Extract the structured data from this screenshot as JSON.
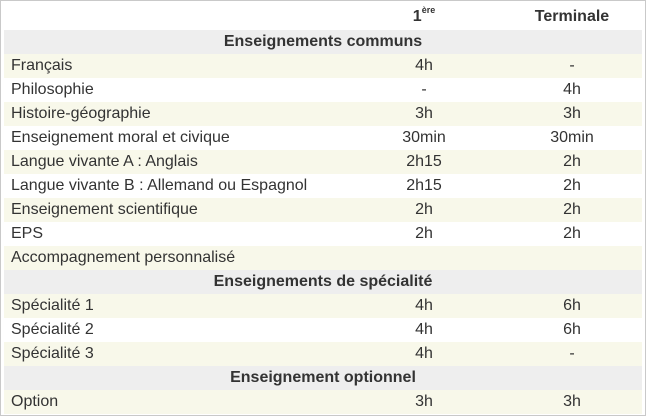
{
  "header": {
    "col1": "",
    "col2_main": "1",
    "col2_sup": "ère",
    "col3": "Terminale"
  },
  "sections": [
    {
      "title": "Enseignements communs",
      "rows": [
        {
          "label": "Français",
          "first": "4h",
          "terminale": "-"
        },
        {
          "label": "Philosophie",
          "first": "-",
          "terminale": "4h"
        },
        {
          "label": "Histoire-géographie",
          "first": "3h",
          "terminale": "3h"
        },
        {
          "label": "Enseignement moral et civique",
          "first": "30min",
          "terminale": "30min"
        },
        {
          "label": "Langue vivante A : Anglais",
          "first": "2h15",
          "terminale": "2h"
        },
        {
          "label": "Langue vivante B : Allemand ou Espagnol",
          "first": "2h15",
          "terminale": "2h"
        },
        {
          "label": "Enseignement scientifique",
          "first": "2h",
          "terminale": "2h"
        },
        {
          "label": "EPS",
          "first": "2h",
          "terminale": "2h"
        },
        {
          "label": "Accompagnement personnalisé",
          "first": "",
          "terminale": ""
        }
      ]
    },
    {
      "title": "Enseignements de spécialité",
      "rows": [
        {
          "label": "Spécialité 1",
          "first": "4h",
          "terminale": "6h"
        },
        {
          "label": "Spécialité 2",
          "first": "4h",
          "terminale": "6h"
        },
        {
          "label": "Spécialité 3",
          "first": "4h",
          "terminale": "-"
        }
      ]
    },
    {
      "title": "Enseignement optionnel",
      "rows": [
        {
          "label": "Option",
          "first": "3h",
          "terminale": "3h"
        }
      ]
    }
  ]
}
